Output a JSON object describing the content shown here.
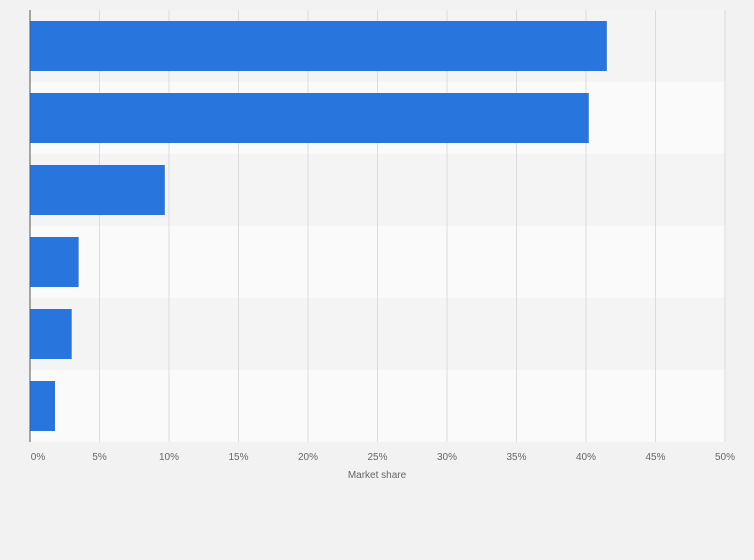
{
  "chart_data": {
    "type": "bar",
    "orientation": "horizontal",
    "categories": [
      "",
      "",
      "",
      "",
      "",
      ""
    ],
    "values": [
      41.5,
      40.2,
      9.7,
      3.5,
      3.0,
      1.8
    ],
    "xlabel": "Market share",
    "ylabel": "",
    "xlim": [
      0,
      50
    ],
    "ticks": [
      0,
      5,
      10,
      15,
      20,
      25,
      30,
      35,
      40,
      45,
      50
    ],
    "tick_labels": [
      "0%",
      "5%",
      "10%",
      "15%",
      "20%",
      "25%",
      "30%",
      "35%",
      "40%",
      "45%",
      "50%"
    ],
    "grid": true,
    "legend": "none",
    "colors": {
      "bar": "#2876dd",
      "band_dark": "#f4f4f4",
      "band_light": "#fafafa",
      "gridline": "#dcdcdc",
      "axis": "#555555"
    }
  }
}
